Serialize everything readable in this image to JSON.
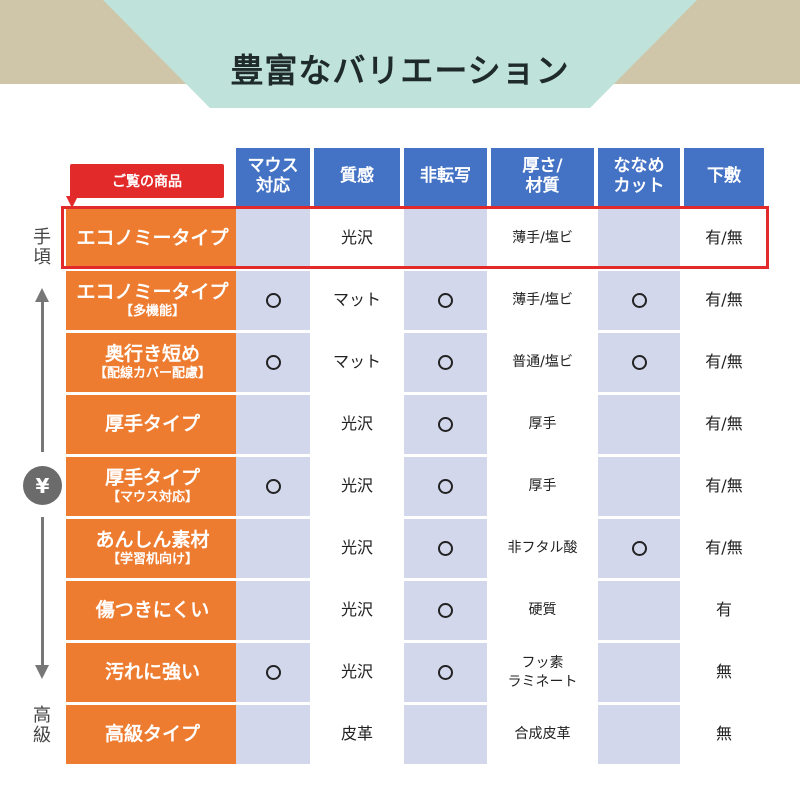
{
  "title": "豊富なバリエーション",
  "callout": "ご覧の商品",
  "scale": {
    "top": "手頃",
    "bottom": "高級",
    "symbol": "¥"
  },
  "columns": [
    "マウス\n対応",
    "質感",
    "非転写",
    "厚さ/\n材質",
    "ななめ\nカット",
    "下敷"
  ],
  "rows": [
    {
      "name": "エコノミータイプ",
      "sub": "",
      "cells": [
        "",
        "光沢",
        "",
        "薄手/塩ビ",
        "",
        "有/無"
      ]
    },
    {
      "name": "エコノミータイプ",
      "sub": "【多機能】",
      "cells": [
        "○",
        "マット",
        "○",
        "薄手/塩ビ",
        "○",
        "有/無"
      ]
    },
    {
      "name": "奥行き短め",
      "sub": "【配線カバー配慮】",
      "cells": [
        "○",
        "マット",
        "○",
        "普通/塩ビ",
        "○",
        "有/無"
      ]
    },
    {
      "name": "厚手タイプ",
      "sub": "",
      "cells": [
        "",
        "光沢",
        "○",
        "厚手",
        "",
        "有/無"
      ]
    },
    {
      "name": "厚手タイプ",
      "sub": "【マウス対応】",
      "cells": [
        "○",
        "光沢",
        "○",
        "厚手",
        "",
        "有/無"
      ]
    },
    {
      "name": "あんしん素材",
      "sub": "【学習机向け】",
      "cells": [
        "",
        "光沢",
        "○",
        "非フタル酸",
        "○",
        "有/無"
      ]
    },
    {
      "name": "傷つきにくい",
      "sub": "",
      "cells": [
        "",
        "光沢",
        "○",
        "硬質",
        "",
        "有"
      ]
    },
    {
      "name": "汚れに強い",
      "sub": "",
      "cells": [
        "○",
        "光沢",
        "○",
        "フッ素\nラミネート",
        "",
        "無"
      ]
    },
    {
      "name": "高級タイプ",
      "sub": "",
      "cells": [
        "",
        "皮革",
        "",
        "合成皮革",
        "",
        "無"
      ]
    }
  ],
  "colors": {
    "header": "#4472c4",
    "label": "#ee7c30",
    "shade": "#d3d7ec",
    "highlight": "#e32a2a",
    "banner": "#bfe2da"
  }
}
